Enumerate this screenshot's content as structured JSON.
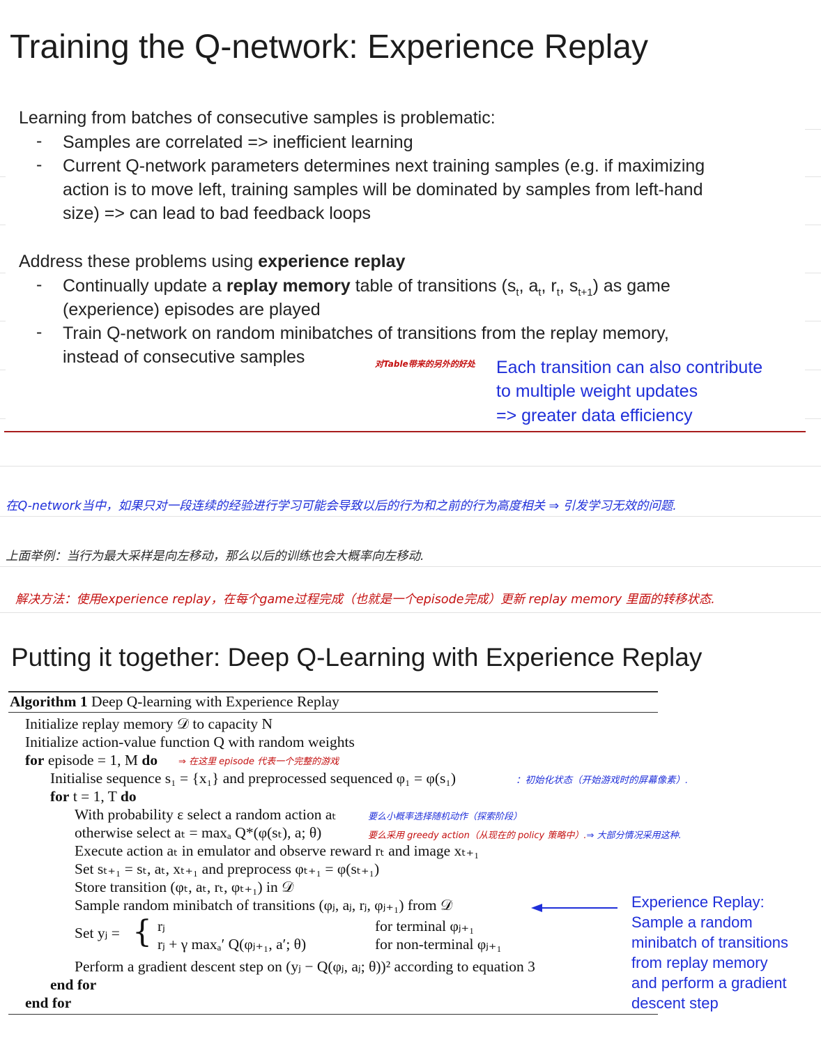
{
  "slide1": {
    "title": "Training the Q-network: Experience Replay",
    "problem_intro": "Learning from batches of consecutive samples is problematic:",
    "problem_bullets": [
      [
        "Samples are correlated => inefficient learning"
      ],
      [
        "Current Q-network parameters determines next training samples (e.g. if maximizing",
        "action is to move left, training samples will be dominated by samples from left-hand",
        "size) => can lead to bad feedback loops"
      ]
    ],
    "address_prefix": "Address these problems using ",
    "address_bold": "experience replay",
    "bullet3": {
      "pre": "Continually update a ",
      "bold": "replay memory",
      "mid": " table of transitions (s",
      "s_t": "t",
      "a": ", a",
      "a_t": "t",
      "r": ", r",
      "r_t": "t",
      "s2": ", s",
      "s2_t": "t+1",
      "post": ") as game",
      "line2": "(experience) episodes are played"
    },
    "bullet4": [
      "Train Q-network on random minibatches of transitions from the replay memory,",
      "instead of consecutive samples"
    ],
    "side_note": [
      "Each transition can also contribute",
      "to multiple weight updates",
      "=> greater data efficiency"
    ],
    "dash": "-"
  },
  "annotations": {
    "red_small": "对Table带来的另外的好处",
    "blue_line": "在Q-network当中，如果只对一段连续的经验进行学习可能会导致以后的行为和之前的行为高度相关 ⇒ 引发学习无效的问题.",
    "dark_line": "上面举例：当行为最大采样是向左移动，那么以后的训练也会大概率向左移动.",
    "red_line": "解决方法：使用experience replay，在每个game过程完成（也就是一个episode完成）更新 replay memory 里面的转移状态.",
    "episode_note": "⇒ 在这里 episode 代表一个完整的游戏",
    "init_note": "：初始化状态（开始游戏时的屏幕像素）.",
    "prob_note": "要么小概率选择随机动作（探索阶段）",
    "greedy_note_red": "要么采用 greedy action（从现在的 policy 策略中）.",
    "greedy_note_blue": "⇒ 大部分情况采用这种."
  },
  "slide2": {
    "title": "Putting it together: Deep Q-Learning with Experience Replay",
    "algo_label": "Algorithm 1",
    "algo_name": " Deep Q-learning with Experience Replay",
    "lines": {
      "l1": "Initialize replay memory 𝒟 to capacity N",
      "l2": "Initialize action-value function Q with random weights",
      "l3_kw": "for",
      "l3_rest": " episode = 1, M ",
      "l3_do": "do",
      "l4": "Initialise sequence s₁ = {x₁} and preprocessed sequenced φ₁ = φ(s₁)",
      "l5_kw": "for",
      "l5_rest": " t = 1, T ",
      "l5_do": "do",
      "l6": "With probability ε select a random action aₜ",
      "l7": "otherwise select aₜ = maxₐ Q*(φ(sₜ), a; θ)",
      "l8": "Execute action aₜ in emulator and observe reward rₜ and image xₜ₊₁",
      "l9": "Set sₜ₊₁ = sₜ, aₜ, xₜ₊₁ and preprocess φₜ₊₁ = φ(sₜ₊₁)",
      "l10": "Store transition (φₜ, aₜ, rₜ, φₜ₊₁) in 𝒟",
      "l11": "Sample random minibatch of transitions (φⱼ, aⱼ, rⱼ, φⱼ₊₁) from 𝒟",
      "l12_set": "Set yⱼ =",
      "l12_case1": "rⱼ",
      "l12_case1_cond": "for terminal φⱼ₊₁",
      "l12_case2": "rⱼ + γ maxₐ′ Q(φⱼ₊₁, a′; θ)",
      "l12_case2_cond": "for non-terminal φⱼ₊₁",
      "l13": "Perform a gradient descent step on (yⱼ − Q(φⱼ, aⱼ; θ))² according to equation 3",
      "l14": "end for",
      "l15": "end for"
    },
    "callout": [
      "Experience Replay:",
      "Sample a random",
      "minibatch of transitions",
      "from replay memory",
      "and perform a gradient",
      "descent step"
    ]
  }
}
